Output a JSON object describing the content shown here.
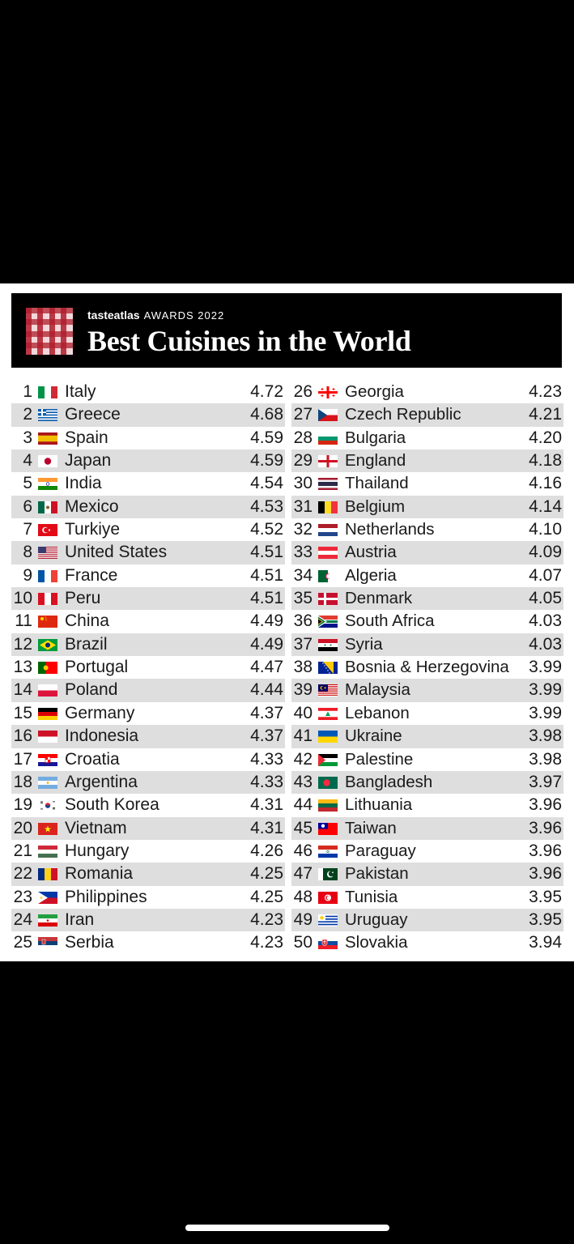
{
  "header": {
    "brand_taste": "tasteatlas",
    "brand_awards": "AWARDS 2022",
    "title": "Best Cuisines in the World"
  },
  "columns": [
    [
      {
        "rank": "1",
        "country": "Italy",
        "score": "4.72",
        "flag": "it"
      },
      {
        "rank": "2",
        "country": "Greece",
        "score": "4.68",
        "flag": "gr"
      },
      {
        "rank": "3",
        "country": "Spain",
        "score": "4.59",
        "flag": "es"
      },
      {
        "rank": "4",
        "country": "Japan",
        "score": "4.59",
        "flag": "jp"
      },
      {
        "rank": "5",
        "country": "India",
        "score": "4.54",
        "flag": "in"
      },
      {
        "rank": "6",
        "country": "Mexico",
        "score": "4.53",
        "flag": "mx"
      },
      {
        "rank": "7",
        "country": "Turkiye",
        "score": "4.52",
        "flag": "tr"
      },
      {
        "rank": "8",
        "country": "United States",
        "score": "4.51",
        "flag": "us"
      },
      {
        "rank": "9",
        "country": "France",
        "score": "4.51",
        "flag": "fr"
      },
      {
        "rank": "10",
        "country": "Peru",
        "score": "4.51",
        "flag": "pe"
      },
      {
        "rank": "11",
        "country": "China",
        "score": "4.49",
        "flag": "cn"
      },
      {
        "rank": "12",
        "country": "Brazil",
        "score": "4.49",
        "flag": "br"
      },
      {
        "rank": "13",
        "country": "Portugal",
        "score": "4.47",
        "flag": "pt"
      },
      {
        "rank": "14",
        "country": "Poland",
        "score": "4.44",
        "flag": "pl"
      },
      {
        "rank": "15",
        "country": "Germany",
        "score": "4.37",
        "flag": "de"
      },
      {
        "rank": "16",
        "country": "Indonesia",
        "score": "4.37",
        "flag": "id"
      },
      {
        "rank": "17",
        "country": "Croatia",
        "score": "4.33",
        "flag": "hr"
      },
      {
        "rank": "18",
        "country": "Argentina",
        "score": "4.33",
        "flag": "ar"
      },
      {
        "rank": "19",
        "country": "South Korea",
        "score": "4.31",
        "flag": "kr"
      },
      {
        "rank": "20",
        "country": "Vietnam",
        "score": "4.31",
        "flag": "vn"
      },
      {
        "rank": "21",
        "country": "Hungary",
        "score": "4.26",
        "flag": "hu"
      },
      {
        "rank": "22",
        "country": "Romania",
        "score": "4.25",
        "flag": "ro"
      },
      {
        "rank": "23",
        "country": "Philippines",
        "score": "4.25",
        "flag": "ph"
      },
      {
        "rank": "24",
        "country": "Iran",
        "score": "4.23",
        "flag": "ir"
      },
      {
        "rank": "25",
        "country": "Serbia",
        "score": "4.23",
        "flag": "rs"
      }
    ],
    [
      {
        "rank": "26",
        "country": "Georgia",
        "score": "4.23",
        "flag": "ge"
      },
      {
        "rank": "27",
        "country": "Czech Republic",
        "score": "4.21",
        "flag": "cz"
      },
      {
        "rank": "28",
        "country": "Bulgaria",
        "score": "4.20",
        "flag": "bg"
      },
      {
        "rank": "29",
        "country": "England",
        "score": "4.18",
        "flag": "en"
      },
      {
        "rank": "30",
        "country": "Thailand",
        "score": "4.16",
        "flag": "th"
      },
      {
        "rank": "31",
        "country": "Belgium",
        "score": "4.14",
        "flag": "be"
      },
      {
        "rank": "32",
        "country": "Netherlands",
        "score": "4.10",
        "flag": "nl"
      },
      {
        "rank": "33",
        "country": "Austria",
        "score": "4.09",
        "flag": "at"
      },
      {
        "rank": "34",
        "country": "Algeria",
        "score": "4.07",
        "flag": "dz"
      },
      {
        "rank": "35",
        "country": "Denmark",
        "score": "4.05",
        "flag": "dk"
      },
      {
        "rank": "36",
        "country": "South Africa",
        "score": "4.03",
        "flag": "za"
      },
      {
        "rank": "37",
        "country": "Syria",
        "score": "4.03",
        "flag": "sy"
      },
      {
        "rank": "38",
        "country": "Bosnia & Herzegovina",
        "score": "3.99",
        "flag": "ba"
      },
      {
        "rank": "39",
        "country": "Malaysia",
        "score": "3.99",
        "flag": "my"
      },
      {
        "rank": "40",
        "country": "Lebanon",
        "score": "3.99",
        "flag": "lb"
      },
      {
        "rank": "41",
        "country": "Ukraine",
        "score": "3.98",
        "flag": "ua"
      },
      {
        "rank": "42",
        "country": "Palestine",
        "score": "3.98",
        "flag": "ps"
      },
      {
        "rank": "43",
        "country": "Bangladesh",
        "score": "3.97",
        "flag": "bd"
      },
      {
        "rank": "44",
        "country": "Lithuania",
        "score": "3.96",
        "flag": "lt"
      },
      {
        "rank": "45",
        "country": "Taiwan",
        "score": "3.96",
        "flag": "tw"
      },
      {
        "rank": "46",
        "country": "Paraguay",
        "score": "3.96",
        "flag": "py"
      },
      {
        "rank": "47",
        "country": "Pakistan",
        "score": "3.96",
        "flag": "pk"
      },
      {
        "rank": "48",
        "country": "Tunisia",
        "score": "3.95",
        "flag": "tn"
      },
      {
        "rank": "49",
        "country": "Uruguay",
        "score": "3.95",
        "flag": "uy"
      },
      {
        "rank": "50",
        "country": "Slovakia",
        "score": "3.94",
        "flag": "sk"
      }
    ]
  ],
  "colors": {
    "background": "#000000",
    "card": "#ffffff",
    "row_stripe": "#dedede",
    "logo_red": "#b01e2c"
  }
}
